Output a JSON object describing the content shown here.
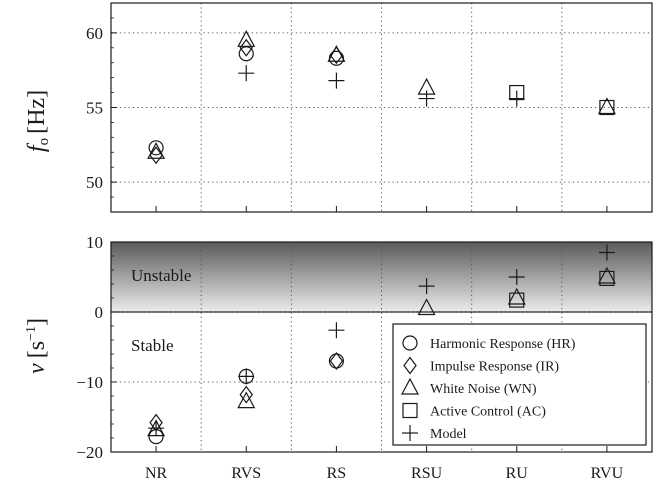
{
  "chart_data": [
    {
      "type": "scatter",
      "panel": "top",
      "ylabel_symbol": "f",
      "ylabel_subscript": "o",
      "ylabel_unit": "[Hz]",
      "categories": [
        "NR",
        "RVS",
        "RS",
        "RSU",
        "RU",
        "RVU"
      ],
      "ylim": [
        48,
        62
      ],
      "yticks": [
        50,
        55,
        60
      ],
      "grid": true,
      "series": [
        {
          "name": "Harmonic Response (HR)",
          "marker": "circle",
          "values": [
            52.3,
            58.6,
            58.3,
            null,
            null,
            null
          ]
        },
        {
          "name": "Impulse Response (IR)",
          "marker": "diamond",
          "values": [
            51.8,
            59.0,
            58.5,
            null,
            null,
            null
          ]
        },
        {
          "name": "White Noise (WN)",
          "marker": "triangle",
          "values": [
            52.0,
            59.5,
            58.5,
            56.3,
            null,
            55.0
          ]
        },
        {
          "name": "Active Control (AC)",
          "marker": "square",
          "values": [
            null,
            null,
            null,
            null,
            56.0,
            55.0
          ]
        },
        {
          "name": "Model",
          "marker": "plus",
          "values": [
            null,
            57.3,
            56.8,
            55.6,
            55.6,
            null
          ]
        }
      ]
    },
    {
      "type": "scatter",
      "panel": "bottom",
      "ylabel_symbol": "ν",
      "ylabel_unit": "[s",
      "ylabel_exp": "−1",
      "ylabel_close": "]",
      "categories": [
        "NR",
        "RVS",
        "RS",
        "RSU",
        "RU",
        "RVU"
      ],
      "ylim": [
        -20,
        10
      ],
      "yticks": [
        -20,
        -10,
        0,
        10
      ],
      "grid": true,
      "unstable_region": [
        0,
        10
      ],
      "region_labels": {
        "unstable": "Unstable",
        "stable": "Stable"
      },
      "legend_position": "bottom-right",
      "series": [
        {
          "name": "Harmonic Response (HR)",
          "marker": "circle",
          "values": [
            -17.8,
            -9.2,
            -7.0,
            null,
            null,
            null
          ]
        },
        {
          "name": "Impulse Response (IR)",
          "marker": "diamond",
          "values": [
            -15.8,
            -11.8,
            -7.0,
            null,
            null,
            null
          ]
        },
        {
          "name": "White Noise (WN)",
          "marker": "triangle",
          "values": [
            -16.8,
            -12.8,
            null,
            0.5,
            2.0,
            5.0
          ]
        },
        {
          "name": "Active Control (AC)",
          "marker": "square",
          "values": [
            null,
            null,
            null,
            null,
            1.7,
            4.8
          ]
        },
        {
          "name": "Model",
          "marker": "plus",
          "values": [
            -16.6,
            -9.2,
            -2.6,
            3.7,
            5.0,
            8.5
          ]
        }
      ]
    }
  ],
  "colors": {
    "stroke": "#1a1a1a",
    "grid": "#555555",
    "unstable_dark": "#5a5a5a",
    "unstable_light": "#ececec"
  }
}
